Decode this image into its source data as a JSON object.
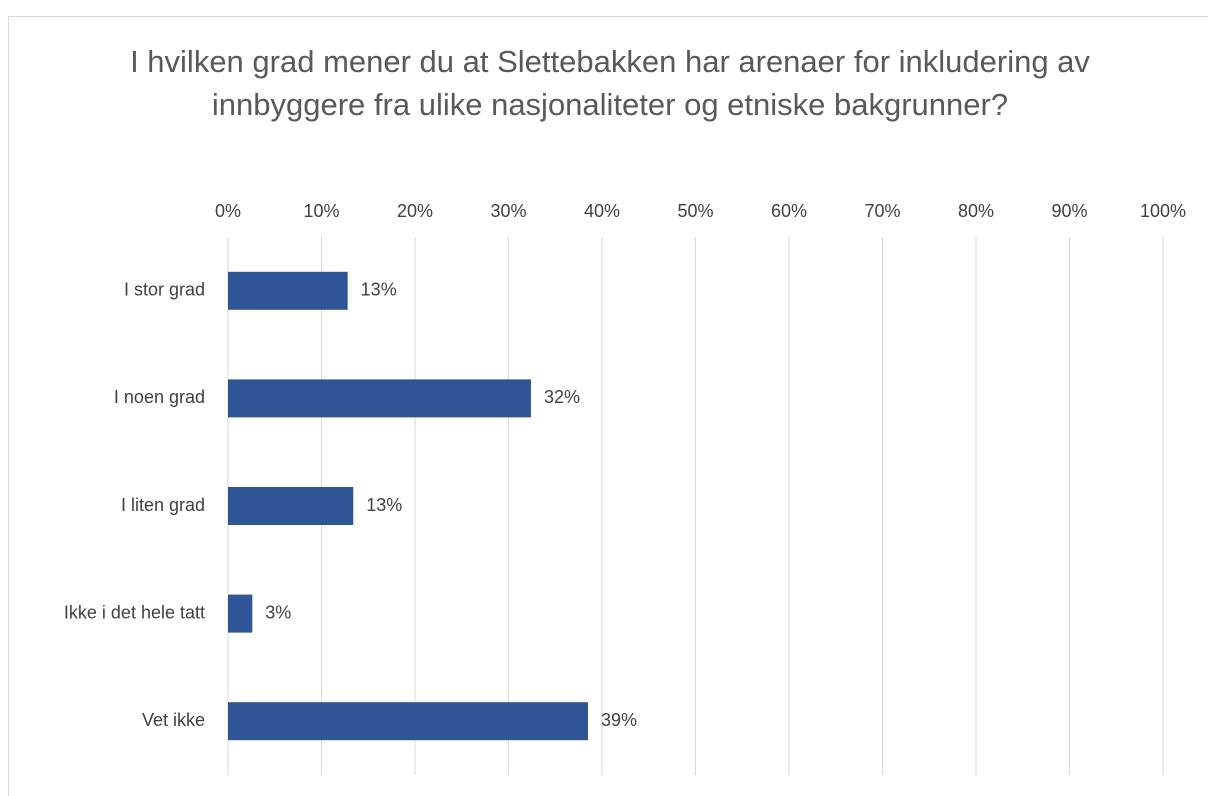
{
  "chart_data": {
    "type": "bar",
    "orientation": "horizontal",
    "title": "I hvilken grad mener du at Slettebakken har arenaer for inkludering av innbyggere fra ulike nasjonaliteter og etniske bakgrunner?",
    "categories": [
      "I stor grad",
      "I noen grad",
      "I liten grad",
      "Ikke i det hele tatt",
      "Vet ikke"
    ],
    "values": [
      12.8,
      32.4,
      13.4,
      2.6,
      38.5
    ],
    "value_labels": [
      "13%",
      "32%",
      "13%",
      "3%",
      "39%"
    ],
    "color": "#2f5597",
    "xlim": [
      0,
      100
    ],
    "xticks": [
      {
        "value": 0,
        "label": "0%"
      },
      {
        "value": 10,
        "label": "10%"
      },
      {
        "value": 20,
        "label": "20%"
      },
      {
        "value": 30,
        "label": "30%"
      },
      {
        "value": 40,
        "label": "40%"
      },
      {
        "value": 50,
        "label": "50%"
      },
      {
        "value": 60,
        "label": "60%"
      },
      {
        "value": 70,
        "label": "70%"
      },
      {
        "value": 80,
        "label": "80%"
      },
      {
        "value": 90,
        "label": "90%"
      },
      {
        "value": 100,
        "label": "100%"
      }
    ],
    "grid": true
  }
}
